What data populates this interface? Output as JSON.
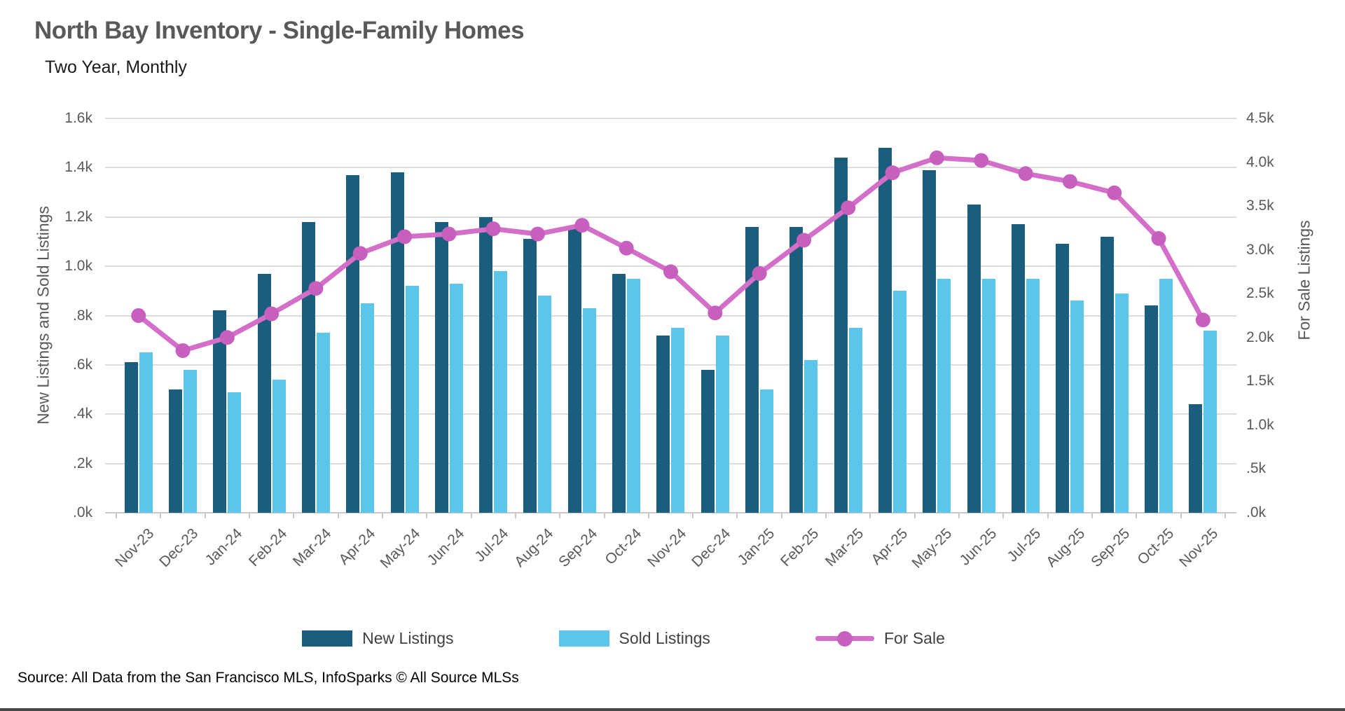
{
  "header": {
    "title": "North Bay Inventory - Single-Family Homes",
    "subtitle": "Two Year, Monthly"
  },
  "chart_data": {
    "type": "bar",
    "subtype": "grouped bars with overlaid line on secondary axis",
    "categories": [
      "Nov-23",
      "Dec-23",
      "Jan-24",
      "Feb-24",
      "Mar-24",
      "Apr-24",
      "May-24",
      "Jun-24",
      "Jul-24",
      "Aug-24",
      "Sep-24",
      "Oct-24",
      "Nov-24",
      "Dec-24",
      "Jan-25",
      "Feb-25",
      "Mar-25",
      "Apr-25",
      "May-25",
      "Jun-25",
      "Jul-25",
      "Aug-25",
      "Sep-25",
      "Oct-25",
      "Nov-25"
    ],
    "series": [
      {
        "name": "New Listings",
        "type": "bar",
        "axis": "left",
        "color": "#1b5d7f",
        "values": [
          610,
          500,
          820,
          970,
          1180,
          1370,
          1380,
          1180,
          1200,
          1110,
          1150,
          970,
          720,
          580,
          1160,
          1160,
          1440,
          1480,
          1390,
          1250,
          1170,
          1090,
          1120,
          840,
          440
        ]
      },
      {
        "name": "Sold Listings",
        "type": "bar",
        "axis": "left",
        "color": "#5cc5ec",
        "values": [
          650,
          580,
          490,
          540,
          730,
          850,
          920,
          930,
          980,
          880,
          830,
          950,
          750,
          720,
          500,
          620,
          750,
          900,
          950,
          950,
          950,
          860,
          890,
          950,
          740
        ]
      },
      {
        "name": "For Sale",
        "type": "line",
        "axis": "right",
        "color": "#d46fc9",
        "marker_color": "#c75fbe",
        "values": [
          2250,
          1850,
          2000,
          2270,
          2560,
          2960,
          3150,
          3180,
          3240,
          3180,
          3280,
          3020,
          2750,
          2280,
          2730,
          3110,
          3480,
          3880,
          4050,
          4020,
          3870,
          3780,
          3650,
          3130,
          2200
        ]
      }
    ],
    "left_axis": {
      "title": "New Listings and Sold Listings",
      "min": 0,
      "max": 1600,
      "tick_labels": [
        "1.6k",
        "1.4k",
        "1.2k",
        "1.0k",
        ".8k",
        ".6k",
        ".4k",
        ".2k",
        ".0k"
      ]
    },
    "right_axis": {
      "title": "For Sale Listings",
      "min": 0,
      "max": 4500,
      "tick_labels": [
        "4.5k",
        "4.0k",
        "3.5k",
        "3.0k",
        "2.5k",
        "2.0k",
        "1.5k",
        "1.0k",
        ".5k",
        ".0k"
      ]
    },
    "grid": "horizontal gridlines at left-axis ticks",
    "legend_position": "bottom center"
  },
  "footer": {
    "source": "Source: All Data from the San Francisco MLS, InfoSparks © All Source MLSs"
  }
}
